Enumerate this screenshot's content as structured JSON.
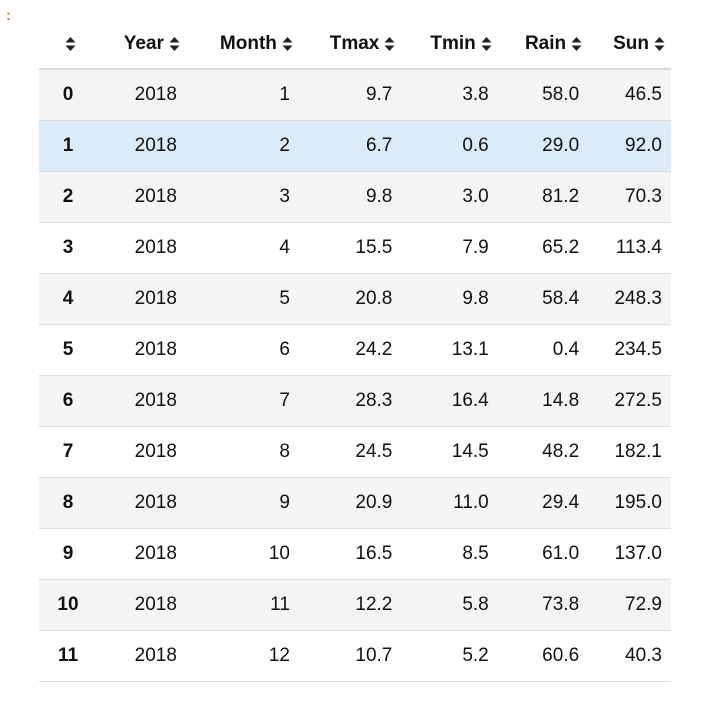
{
  "prompt_marker": ":",
  "table": {
    "columns": [
      "Year",
      "Month",
      "Tmax",
      "Tmin",
      "Rain",
      "Sun"
    ],
    "rows": [
      {
        "index": "0",
        "cells": [
          "2018",
          "1",
          "9.7",
          "3.8",
          "58.0",
          "46.5"
        ]
      },
      {
        "index": "1",
        "cells": [
          "2018",
          "2",
          "6.7",
          "0.6",
          "29.0",
          "92.0"
        ]
      },
      {
        "index": "2",
        "cells": [
          "2018",
          "3",
          "9.8",
          "3.0",
          "81.2",
          "70.3"
        ]
      },
      {
        "index": "3",
        "cells": [
          "2018",
          "4",
          "15.5",
          "7.9",
          "65.2",
          "113.4"
        ]
      },
      {
        "index": "4",
        "cells": [
          "2018",
          "5",
          "20.8",
          "9.8",
          "58.4",
          "248.3"
        ]
      },
      {
        "index": "5",
        "cells": [
          "2018",
          "6",
          "24.2",
          "13.1",
          "0.4",
          "234.5"
        ]
      },
      {
        "index": "6",
        "cells": [
          "2018",
          "7",
          "28.3",
          "16.4",
          "14.8",
          "272.5"
        ]
      },
      {
        "index": "7",
        "cells": [
          "2018",
          "8",
          "24.5",
          "14.5",
          "48.2",
          "182.1"
        ]
      },
      {
        "index": "8",
        "cells": [
          "2018",
          "9",
          "20.9",
          "11.0",
          "29.4",
          "195.0"
        ]
      },
      {
        "index": "9",
        "cells": [
          "2018",
          "10",
          "16.5",
          "8.5",
          "61.0",
          "137.0"
        ]
      },
      {
        "index": "10",
        "cells": [
          "2018",
          "11",
          "12.2",
          "5.8",
          "73.8",
          "72.9"
        ]
      },
      {
        "index": "11",
        "cells": [
          "2018",
          "12",
          "10.7",
          "5.2",
          "60.6",
          "40.3"
        ]
      }
    ],
    "highlighted_row": 1
  },
  "icons": {
    "sort": "sort-updown-icon"
  },
  "colors": {
    "highlight_row": "#dcebf9",
    "stripe_row": "#f5f5f5",
    "prompt_marker": "#e07b1a"
  }
}
